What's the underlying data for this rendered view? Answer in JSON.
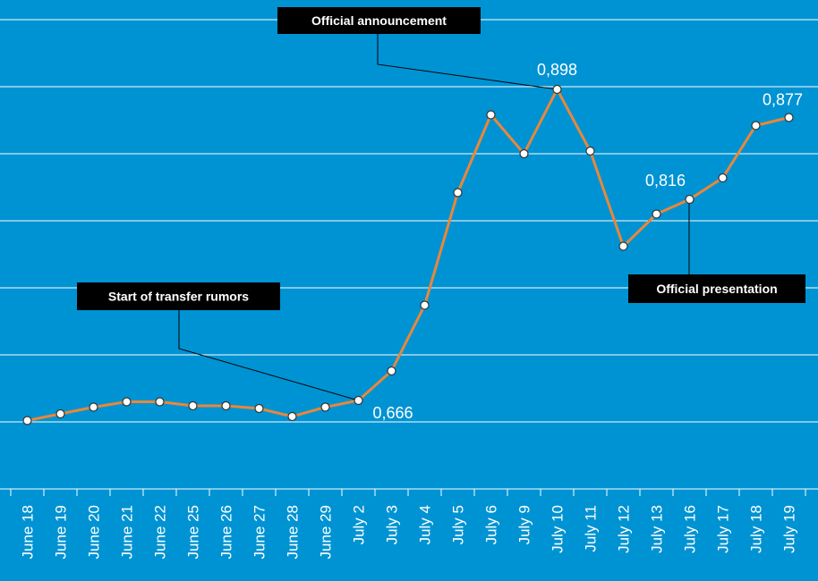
{
  "chart_data": {
    "type": "line",
    "categories": [
      "June 18",
      "June 19",
      "June 20",
      "June 21",
      "June 22",
      "June 25",
      "June 26",
      "June 27",
      "June 28",
      "June 29",
      "July 2",
      "July 3",
      "July 4",
      "July 5",
      "July 6",
      "July 9",
      "July 10",
      "July 11",
      "July 12",
      "July 13",
      "July 16",
      "July 17",
      "July 18",
      "July 19"
    ],
    "series": [
      {
        "color": "#e8873a",
        "values": [
          0.651,
          0.656,
          0.661,
          0.665,
          0.665,
          0.662,
          0.662,
          0.66,
          0.654,
          0.661,
          0.666,
          0.688,
          0.737,
          0.821,
          0.879,
          0.85,
          0.898,
          0.852,
          0.781,
          0.805,
          0.816,
          0.832,
          0.871,
          0.877
        ],
        "value_labels": [
          null,
          null,
          null,
          null,
          null,
          null,
          null,
          null,
          null,
          null,
          "0,666",
          null,
          null,
          null,
          null,
          null,
          "0,898",
          null,
          null,
          null,
          "0,816",
          null,
          null,
          "0,877"
        ]
      }
    ],
    "ylim": [
      0.6,
      0.95
    ],
    "yticks": [
      0.6,
      0.65,
      0.7,
      0.75,
      0.8,
      0.85,
      0.9,
      0.95
    ],
    "grid": true,
    "annotations": [
      {
        "text": "Official announcement"
      },
      {
        "text": "Start of transfer rumors"
      },
      {
        "text": "Official presentation"
      }
    ]
  }
}
